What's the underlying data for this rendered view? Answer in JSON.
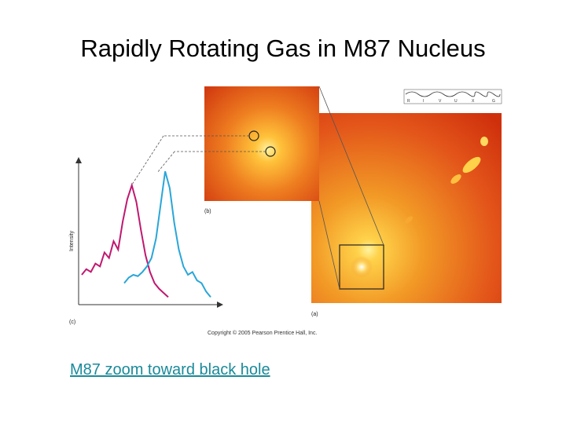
{
  "slide": {
    "title": "Rapidly Rotating Gas in M87 Nucleus",
    "link_text": "M87 zoom toward black hole"
  },
  "figure": {
    "copyright": "Copyright © 2005 Pearson Prentice Hall, Inc.",
    "panel_labels": {
      "a": "(a)",
      "b": "(b)",
      "c": "(c)"
    },
    "spectrum_axis_label": "Intensity",
    "wavelength_bands": [
      "R",
      "I",
      "V",
      "U",
      "X",
      "G"
    ],
    "colors": {
      "magenta_line": "#c01870",
      "cyan_line": "#2aa6d8",
      "link": "#1a8a9a",
      "image_dark": "#d53a0e",
      "image_bright": "#ffd24a"
    }
  },
  "chart_data": {
    "type": "line",
    "title": "",
    "ylabel": "Intensity",
    "xlabel": "",
    "series": [
      {
        "values": [
          0.18,
          0.22,
          0.2,
          0.26,
          0.24,
          0.34,
          0.3,
          0.42,
          0.36,
          0.56,
          0.72,
          0.82,
          0.7,
          0.5,
          0.32,
          0.2,
          0.12,
          0.08,
          0.05,
          0.02
        ]
      },
      {
        "values": [
          0.12,
          0.16,
          0.18,
          0.17,
          0.2,
          0.24,
          0.3,
          0.44,
          0.68,
          0.92,
          0.8,
          0.55,
          0.36,
          0.24,
          0.18,
          0.2,
          0.14,
          0.12,
          0.06,
          0.02
        ]
      }
    ]
  }
}
